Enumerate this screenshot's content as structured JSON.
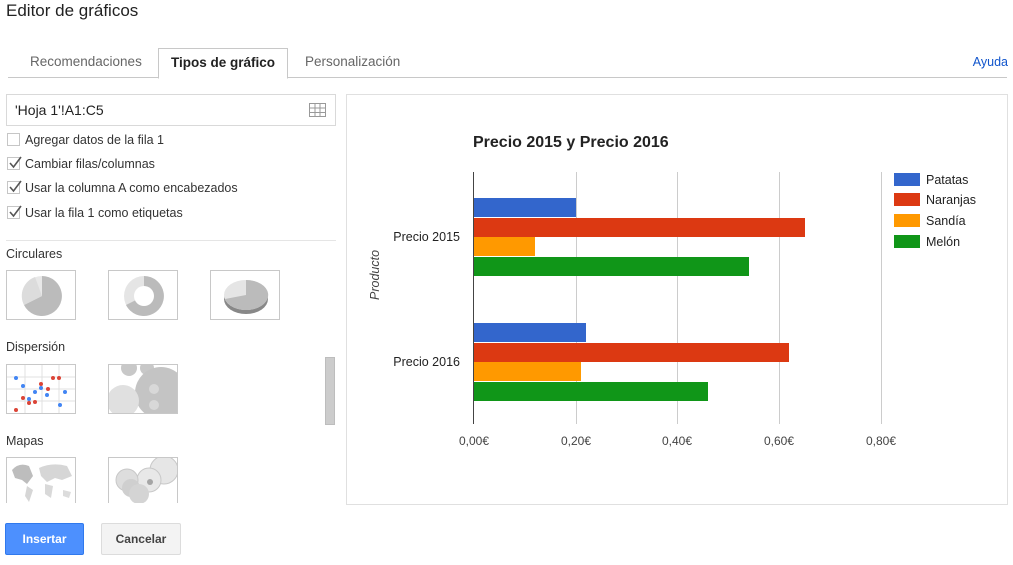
{
  "header": {
    "title": "Editor de gráficos",
    "help_link": "Ayuda"
  },
  "tabs": [
    {
      "label": "Recomendaciones",
      "active": false
    },
    {
      "label": "Tipos de gráfico",
      "active": true
    },
    {
      "label": "Personalización",
      "active": false
    }
  ],
  "sidebar": {
    "range_value": "'Hoja 1'!A1:C5",
    "range_icon": "grid-icon",
    "options": [
      {
        "label": "Agregar datos de la fila 1",
        "checked": false
      },
      {
        "label": "Cambiar filas/columnas",
        "checked": true
      },
      {
        "label": "Usar la columna A como encabezados",
        "checked": true
      },
      {
        "label": "Usar la fila 1 como etiquetas",
        "checked": true
      }
    ],
    "sections": [
      {
        "label": "Circulares",
        "thumbs": [
          "pie-chart-thumb",
          "donut-chart-thumb",
          "3d-pie-chart-thumb"
        ]
      },
      {
        "label": "Dispersión",
        "thumbs": [
          "scatter-chart-thumb",
          "bubble-chart-thumb"
        ]
      },
      {
        "label": "Mapas",
        "thumbs": [
          "geo-chart-thumb",
          "geo-bubble-chart-thumb"
        ]
      }
    ]
  },
  "footer": {
    "insert_label": "Insertar",
    "cancel_label": "Cancelar"
  },
  "colors": {
    "accent": "#4d90fe",
    "link": "#1155cc"
  },
  "chart_data": {
    "type": "bar",
    "orientation": "horizontal",
    "title": "Precio 2015 y Precio 2016",
    "xlabel": "",
    "ylabel": "Producto",
    "categories": [
      "Precio 2015",
      "Precio 2016"
    ],
    "series": [
      {
        "name": "Patatas",
        "color": "#3366cc",
        "values": [
          0.2,
          0.22
        ]
      },
      {
        "name": "Naranjas",
        "color": "#dc3912",
        "values": [
          0.65,
          0.62
        ]
      },
      {
        "name": "Sandía",
        "color": "#ff9900",
        "values": [
          0.12,
          0.21
        ]
      },
      {
        "name": "Melón",
        "color": "#109618",
        "values": [
          0.54,
          0.46
        ]
      }
    ],
    "xlim": [
      0,
      0.8
    ],
    "xticks": [
      "0,00€",
      "0,20€",
      "0,40€",
      "0,60€",
      "0,80€"
    ],
    "grid": true,
    "legend_position": "right"
  }
}
